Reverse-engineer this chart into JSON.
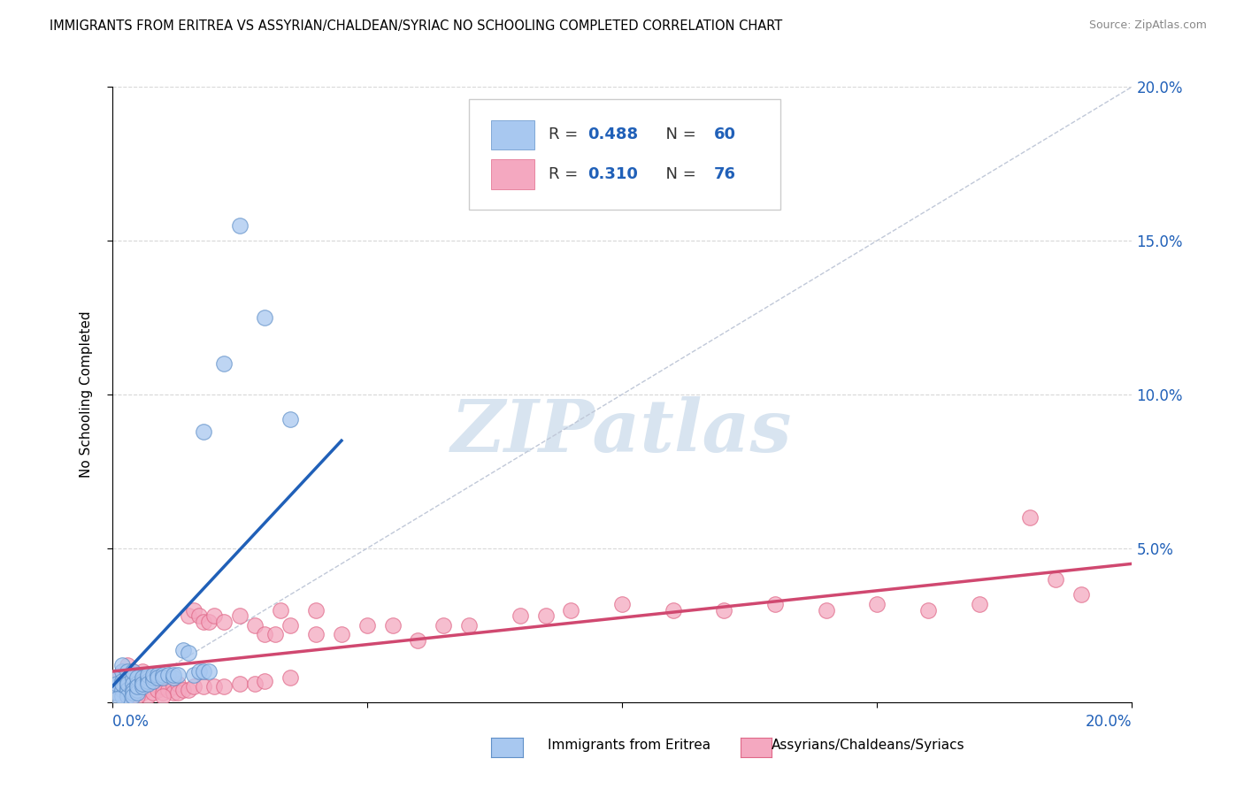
{
  "title": "IMMIGRANTS FROM ERITREA VS ASSYRIAN/CHALDEAN/SYRIAC NO SCHOOLING COMPLETED CORRELATION CHART",
  "source": "Source: ZipAtlas.com",
  "ylabel": "No Schooling Completed",
  "blue_color": "#A8C8F0",
  "pink_color": "#F4A8C0",
  "blue_edge_color": "#6090C8",
  "pink_edge_color": "#E06888",
  "blue_line_color": "#2060B8",
  "pink_line_color": "#D04870",
  "diag_color": "#C0C8D8",
  "value_color": "#2060B8",
  "watermark_color": "#D8E4F0",
  "legend_R1": "0.488",
  "legend_N1": "60",
  "legend_R2": "0.310",
  "legend_N2": "76",
  "legend_label1": "Immigrants from Eritrea",
  "legend_label2": "Assyrians/Chaldeans/Syriacs",
  "xlim": [
    0.0,
    0.2
  ],
  "ylim": [
    0.0,
    0.2
  ],
  "blue_scatter": [
    [
      0.001,
      0.005
    ],
    [
      0.001,
      0.008
    ],
    [
      0.001,
      0.003
    ],
    [
      0.001,
      0.006
    ],
    [
      0.002,
      0.01
    ],
    [
      0.002,
      0.007
    ],
    [
      0.002,
      0.004
    ],
    [
      0.002,
      0.012
    ],
    [
      0.002,
      0.002
    ],
    [
      0.002,
      0.006
    ],
    [
      0.003,
      0.008
    ],
    [
      0.003,
      0.005
    ],
    [
      0.003,
      0.003
    ],
    [
      0.003,
      0.01
    ],
    [
      0.003,
      0.007
    ],
    [
      0.003,
      0.004
    ],
    [
      0.003,
      0.002
    ],
    [
      0.003,
      0.006
    ],
    [
      0.004,
      0.008
    ],
    [
      0.004,
      0.006
    ],
    [
      0.004,
      0.004
    ],
    [
      0.004,
      0.003
    ],
    [
      0.004,
      0.002
    ],
    [
      0.004,
      0.01
    ],
    [
      0.005,
      0.006
    ],
    [
      0.005,
      0.004
    ],
    [
      0.005,
      0.008
    ],
    [
      0.005,
      0.003
    ],
    [
      0.005,
      0.005
    ],
    [
      0.006,
      0.007
    ],
    [
      0.006,
      0.008
    ],
    [
      0.006,
      0.005
    ],
    [
      0.006,
      0.006
    ],
    [
      0.007,
      0.008
    ],
    [
      0.007,
      0.007
    ],
    [
      0.007,
      0.009
    ],
    [
      0.007,
      0.006
    ],
    [
      0.008,
      0.008
    ],
    [
      0.008,
      0.007
    ],
    [
      0.008,
      0.009
    ],
    [
      0.009,
      0.009
    ],
    [
      0.009,
      0.008
    ],
    [
      0.01,
      0.009
    ],
    [
      0.01,
      0.008
    ],
    [
      0.011,
      0.009
    ],
    [
      0.012,
      0.008
    ],
    [
      0.012,
      0.009
    ],
    [
      0.013,
      0.009
    ],
    [
      0.014,
      0.017
    ],
    [
      0.015,
      0.016
    ],
    [
      0.016,
      0.009
    ],
    [
      0.017,
      0.01
    ],
    [
      0.018,
      0.01
    ],
    [
      0.019,
      0.01
    ],
    [
      0.022,
      0.11
    ],
    [
      0.025,
      0.155
    ],
    [
      0.03,
      0.125
    ],
    [
      0.018,
      0.088
    ],
    [
      0.035,
      0.092
    ],
    [
      0.001,
      0.001
    ]
  ],
  "pink_scatter": [
    [
      0.001,
      0.005
    ],
    [
      0.001,
      0.008
    ],
    [
      0.002,
      0.01
    ],
    [
      0.002,
      0.006
    ],
    [
      0.003,
      0.012
    ],
    [
      0.003,
      0.007
    ],
    [
      0.003,
      0.004
    ],
    [
      0.004,
      0.01
    ],
    [
      0.004,
      0.006
    ],
    [
      0.004,
      0.003
    ],
    [
      0.005,
      0.008
    ],
    [
      0.005,
      0.005
    ],
    [
      0.006,
      0.01
    ],
    [
      0.006,
      0.006
    ],
    [
      0.006,
      0.003
    ],
    [
      0.007,
      0.008
    ],
    [
      0.007,
      0.005
    ],
    [
      0.007,
      0.002
    ],
    [
      0.008,
      0.006
    ],
    [
      0.008,
      0.003
    ],
    [
      0.009,
      0.004
    ],
    [
      0.01,
      0.005
    ],
    [
      0.01,
      0.003
    ],
    [
      0.011,
      0.004
    ],
    [
      0.012,
      0.005
    ],
    [
      0.012,
      0.003
    ],
    [
      0.013,
      0.006
    ],
    [
      0.013,
      0.003
    ],
    [
      0.014,
      0.004
    ],
    [
      0.015,
      0.028
    ],
    [
      0.015,
      0.004
    ],
    [
      0.016,
      0.03
    ],
    [
      0.016,
      0.005
    ],
    [
      0.017,
      0.028
    ],
    [
      0.018,
      0.026
    ],
    [
      0.018,
      0.005
    ],
    [
      0.019,
      0.026
    ],
    [
      0.02,
      0.028
    ],
    [
      0.02,
      0.005
    ],
    [
      0.022,
      0.026
    ],
    [
      0.022,
      0.005
    ],
    [
      0.025,
      0.028
    ],
    [
      0.025,
      0.006
    ],
    [
      0.028,
      0.025
    ],
    [
      0.028,
      0.006
    ],
    [
      0.03,
      0.022
    ],
    [
      0.03,
      0.007
    ],
    [
      0.032,
      0.022
    ],
    [
      0.033,
      0.03
    ],
    [
      0.035,
      0.025
    ],
    [
      0.035,
      0.008
    ],
    [
      0.04,
      0.022
    ],
    [
      0.04,
      0.03
    ],
    [
      0.045,
      0.022
    ],
    [
      0.05,
      0.025
    ],
    [
      0.055,
      0.025
    ],
    [
      0.06,
      0.02
    ],
    [
      0.065,
      0.025
    ],
    [
      0.07,
      0.025
    ],
    [
      0.08,
      0.028
    ],
    [
      0.085,
      0.028
    ],
    [
      0.09,
      0.03
    ],
    [
      0.1,
      0.032
    ],
    [
      0.11,
      0.03
    ],
    [
      0.12,
      0.03
    ],
    [
      0.13,
      0.032
    ],
    [
      0.14,
      0.03
    ],
    [
      0.15,
      0.032
    ],
    [
      0.16,
      0.03
    ],
    [
      0.17,
      0.032
    ],
    [
      0.18,
      0.06
    ],
    [
      0.185,
      0.04
    ],
    [
      0.19,
      0.035
    ],
    [
      0.003,
      0.002
    ],
    [
      0.005,
      0.002
    ],
    [
      0.01,
      0.002
    ]
  ]
}
